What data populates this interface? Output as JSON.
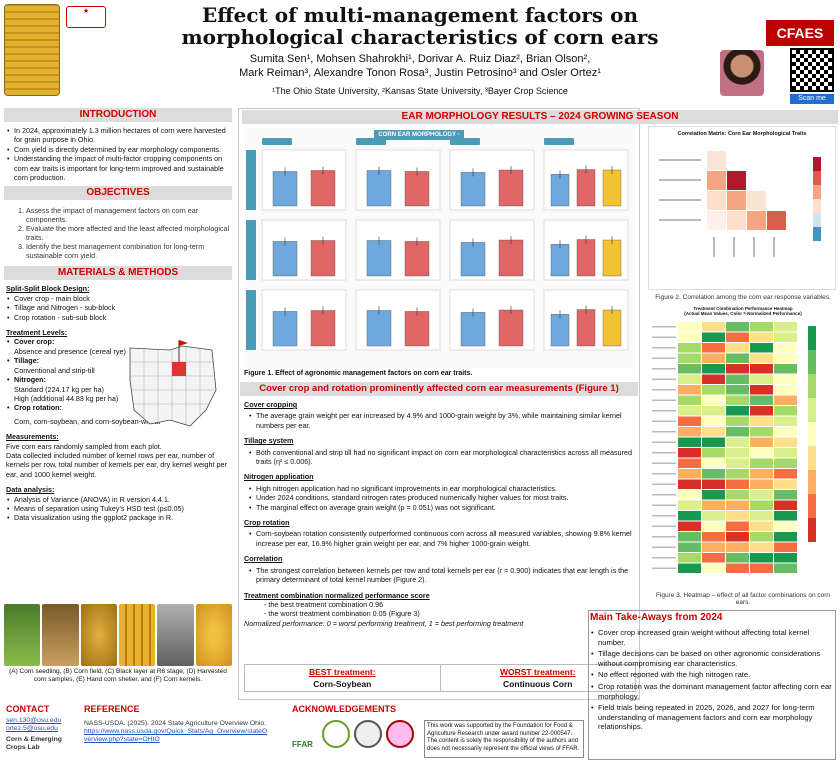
{
  "header": {
    "title": "Effect of multi-management factors on morphological characteristics of corn ears",
    "authors_line1": "Sumita Sen¹, Mohsen Shahrokhi¹, Dorivar A. Ruiz Diaz², Brian Olson²,",
    "authors_line2": "Mark Reiman³, Alexandre Tonon Rosa³, Justin Petrosino³ and Osler Ortez¹",
    "affiliations": "¹The Ohio State University, ²Kansas State University, ³Bayer Crop Science",
    "brand": "CFAES",
    "scan_label": "Scan me"
  },
  "introduction": {
    "heading": "INTRODUCTION",
    "bullets": [
      "In 2024, approximately 1.3 million hectares of corn were harvested for grain purpose in Ohio.",
      "Corn yield is directly determined by ear morphology components.",
      "Understanding the impact of multi-factor cropping components on corn ear traits is important for long-term improved and sustainable corn production."
    ]
  },
  "objectives": {
    "heading": "OBJECTIVES",
    "items": [
      "Assess the impact of management factors on corn ear components.",
      "Evaluate the more affected and the least affected morphological traits.",
      "Identify the best management combination for long-term sustainable corn yield."
    ]
  },
  "methods": {
    "heading": "MATERIALS & METHODS",
    "design_heading": "Split-Split Block Design:",
    "design_items": [
      "Cover crop - main block",
      "Tillage and Nitrogen - sub-block",
      "Crop rotation - sub-sub block"
    ],
    "levels_heading": "Treatment Levels:",
    "levels": [
      {
        "name": "Cover crop:",
        "desc": "Absence and presence (cereal rye)"
      },
      {
        "name": "Tillage:",
        "desc": "Conventional and strip-till"
      },
      {
        "name": "Nitrogen:",
        "desc": "Standard (224.17 kg per ha)",
        "desc2": "High (additional 44.83 kg per ha)"
      },
      {
        "name": "Crop rotation:",
        "desc": "Corn, corn-soybean, and corn-soybean-wheat"
      }
    ],
    "measurements_heading": "Measurements:",
    "measurements": [
      "Five corn ears randomly sampled from each plot.",
      "Data collected included number of kernel rows per ear, number of kernels per row, total number of kernels per ear, dry kernel weight per ear, and 1000 kernel weight."
    ],
    "analysis_heading": "Data analysis:",
    "analysis": [
      "Analysis of Variance (ANOVA) in R version 4.4.1.",
      "Means of separation using Tukey's HSD test (p≤0.05)",
      "Data visualization using the ggplot2 package in R."
    ],
    "photo_caption": "(A) Corn seedling, (B) Corn field, (C) Black layer at R6 stage, (D) Harvested corn samples, (E) Hand corn sheller, and (F) Corn kernels."
  },
  "results": {
    "heading": "EAR MORPHOLOGY RESULTS – 2024 GROWING SEASON",
    "chart_title": "CORN EAR MORPHOLOGY - 2024",
    "panel_titles": [
      "Tillage Method",
      "Nitrogen (N) Application",
      "Cover Crop",
      "Crop Rotation"
    ],
    "fig1_caption": "Figure 1. Effect of agronomic management factors on corn ear traits.",
    "subtitle": "Cover crop and rotation prominently affected corn ear measurements (Figure 1)",
    "sections": [
      {
        "heading": "Cover cropping",
        "bullets": [
          "The average grain weight per ear increased by 4.9% and 1000-grain weight by 3%, while maintaining similar kernel numbers per ear."
        ]
      },
      {
        "heading": "Tillage system",
        "bullets": [
          "Both conventional and strip till had no significant impact on corn ear morphological characteristics across all measured traits (η² ≤ 0.006)."
        ]
      },
      {
        "heading": "Nitrogen application",
        "bullets": [
          "High nitrogen application had no significant improvements in ear morphological characteristics.",
          "Under 2024 conditions, standard nitrogen rates produced numerically higher values for most traits.",
          "The marginal effect on average grain weight (p = 0.051) was not significant."
        ]
      },
      {
        "heading": "Crop rotation",
        "bullets": [
          "Corn-soybean rotation consistently outperformed continuous corn across all measured variables, showing 9.8% kernel increase per ear, 16.9% higher grain weight per ear, and 7% higher 1000-grain weight."
        ]
      },
      {
        "heading": "Correlation",
        "bullets": [
          "The strongest correlation between kernels per row and total kernels per ear (r = 0.900) indicates that ear length is the primary determinant of total kernel number (Figure 2)."
        ]
      }
    ],
    "perf_heading": "Treatment combination normalized performance score",
    "perf_line1": "- the best treatment combination 0.96",
    "perf_line2": "- the worst treatment combination 0.05 (Figure 3)",
    "perf_note": "Normalized performance: 0 = worst performing treatment, 1 = best performing treatment",
    "best_label": "BEST treatment:",
    "best_value": "Corn-Soybean",
    "worst_label": "WORST treatment:",
    "worst_value": "Continuous Corn"
  },
  "figures": {
    "corr_title": "Correlation Matrix: Corn Ear Morphological Traits",
    "fig2_caption": "Figure 2. Correlation among the corn ear response variables.",
    "heat_title": "Treatment Combination Performance Heatmap",
    "heat_subtitle": "(Actual Mean Values, Color = Normalized Performance)",
    "fig3_caption": "Figure 3. Heatmap – effect of all factor combinations on corn ears."
  },
  "takeaways": {
    "heading": "Main Take-Aways from 2024",
    "items": [
      "Cover crop increased grain weight without affecting total kernel number.",
      "Tillage decisions can be based on other agronomic considerations without compromising ear characteristics.",
      "No effect reported with the high nitrogen rate.",
      "Crop rotation was the dominant management factor affecting corn ear morphology.",
      "Field trials being repeated in 2025, 2026, and 2027 for long-term understanding of management factors and corn ear morphology relationships."
    ]
  },
  "footer": {
    "contact_heading": "CONTACT",
    "email1": "sen.130@osu.edu",
    "email2": "ortez.5@osu.edu",
    "lab": "Corn & Emerging Crops Lab",
    "reference_heading": "REFERENCE",
    "reference_text": "NASS-USDA. (2025). 2024 State Agriculture Overview Ohio.",
    "reference_link": "https://www.nass.usda.gov/Quick_Stats/Ag_Overview/stateOverview.php?state=OHIO",
    "ack_heading": "ACKNOWLEDGEMENTS",
    "ffar": "FFAR",
    "funding": "This work was supported by the Foundation for Food & Agriculture Research under award number 22-000547. The content is solely the responsibility of the authors and does not necessarily represent the official views of FFAR."
  },
  "colors": {
    "accent": "#c00000",
    "blue_bar": "#6fa8dc",
    "red_bar": "#e06666",
    "yellow_bar": "#f1c232",
    "section_bg": "#dcdcdc"
  }
}
